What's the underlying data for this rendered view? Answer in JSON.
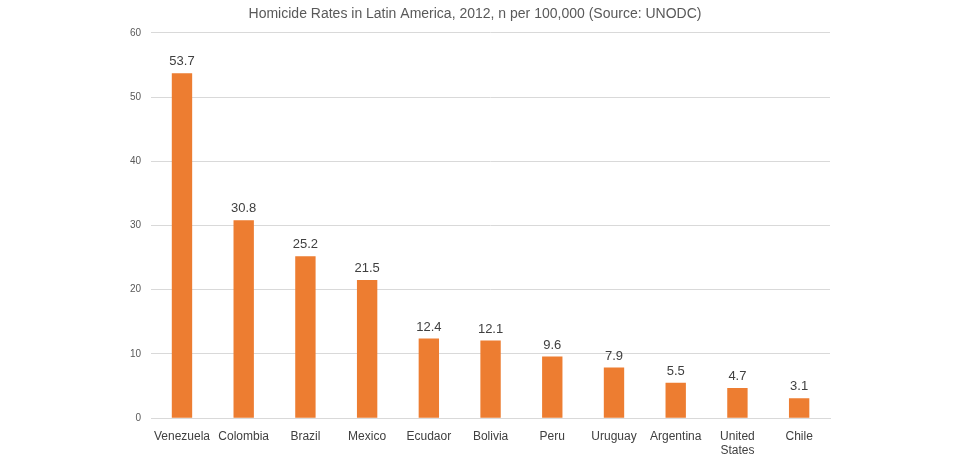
{
  "chart_data": {
    "type": "bar",
    "title": "Homicide Rates in Latin America, 2012, n per 100,000 (Source: UNODC)",
    "categories": [
      "Venezuela",
      "Colombia",
      "Brazil",
      "Mexico",
      "Ecudaor",
      "Bolivia",
      "Peru",
      "Uruguay",
      "Argentina",
      "United States",
      "Chile"
    ],
    "values": [
      53.7,
      30.8,
      25.2,
      21.5,
      12.4,
      12.1,
      9.6,
      7.9,
      5.5,
      4.7,
      3.1
    ],
    "color": "#ed7d31",
    "ylim": [
      0,
      60
    ],
    "yticks": [
      0,
      10,
      20,
      30,
      40,
      50,
      60
    ],
    "grid": true,
    "data_labels": true
  }
}
